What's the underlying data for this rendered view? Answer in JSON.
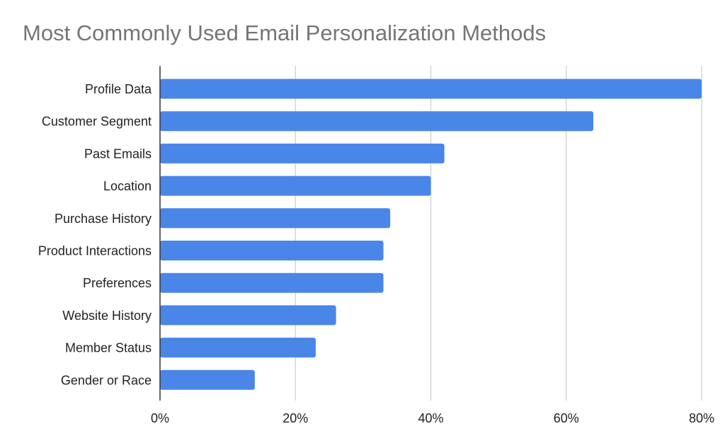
{
  "chart_data": {
    "type": "bar",
    "orientation": "horizontal",
    "title": "Most Commonly Used Email Personalization Methods",
    "categories": [
      "Profile Data",
      "Customer Segment",
      "Past Emails",
      "Location",
      "Purchase History",
      "Product Interactions",
      "Preferences",
      "Website History",
      "Member Status",
      "Gender or Race"
    ],
    "values": [
      80,
      64,
      42,
      40,
      34,
      33,
      33,
      26,
      23,
      14
    ],
    "xlim": [
      0,
      80
    ],
    "x_ticks": [
      {
        "value": 0,
        "label": "0%"
      },
      {
        "value": 20,
        "label": "20%"
      },
      {
        "value": 40,
        "label": "40%"
      },
      {
        "value": 60,
        "label": "60%"
      },
      {
        "value": 80,
        "label": "80%"
      }
    ],
    "xlabel": "",
    "ylabel": "",
    "grid": "vertical",
    "legend": "none",
    "colors": {
      "bar": "#4a86e8",
      "grid": "#cccccc",
      "axis": "#333333",
      "title": "#757575",
      "text": "#222222"
    }
  }
}
